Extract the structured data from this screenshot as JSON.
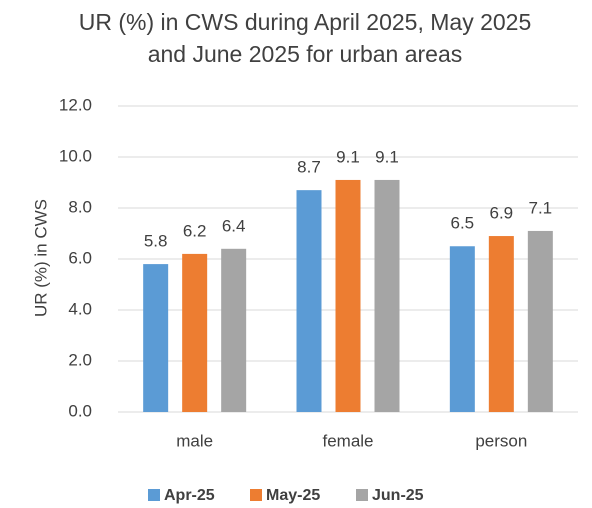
{
  "chart_data": {
    "type": "bar",
    "title": "UR (%) in CWS during April 2025, May 2025 and June 2025  for urban areas",
    "ylabel": "UR (%) in CWS",
    "categories": [
      "male",
      "female",
      "person"
    ],
    "series": [
      {
        "name": "Apr-25",
        "color": "#5b9bd5",
        "values": [
          5.8,
          8.7,
          6.5
        ]
      },
      {
        "name": "May-25",
        "color": "#ed7d31",
        "values": [
          6.2,
          9.1,
          6.9
        ]
      },
      {
        "name": "Jun-25",
        "color": "#a5a5a5",
        "values": [
          6.4,
          9.1,
          7.1
        ]
      }
    ],
    "ylim": [
      0,
      12
    ],
    "yticks": [
      {
        "value": 0,
        "label": "0.0"
      },
      {
        "value": 2,
        "label": "2.0"
      },
      {
        "value": 4,
        "label": "4.0"
      },
      {
        "value": 6,
        "label": "6.0"
      },
      {
        "value": 8,
        "label": "8.0"
      },
      {
        "value": 10,
        "label": "10.0"
      },
      {
        "value": 12,
        "label": "12.0"
      }
    ],
    "grid": true,
    "legend": "bottom"
  }
}
